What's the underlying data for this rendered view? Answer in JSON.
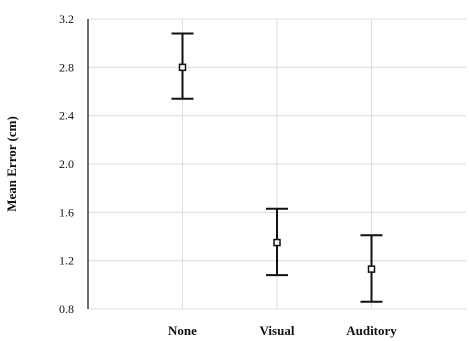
{
  "chart_data": {
    "type": "scatter",
    "categories": [
      "None",
      "Visual",
      "Auditory"
    ],
    "values": [
      2.8,
      1.35,
      1.13
    ],
    "error_low": [
      2.54,
      1.08,
      0.86
    ],
    "error_high": [
      3.08,
      1.63,
      1.41
    ],
    "title": "",
    "xlabel": "",
    "ylabel": "Mean Error (cm)",
    "ylim": [
      0.8,
      3.2
    ],
    "yticks": [
      "0.8",
      "1.2",
      "1.6",
      "2.0",
      "2.4",
      "2.8",
      "3.2"
    ],
    "grid": true,
    "legend": "none"
  }
}
